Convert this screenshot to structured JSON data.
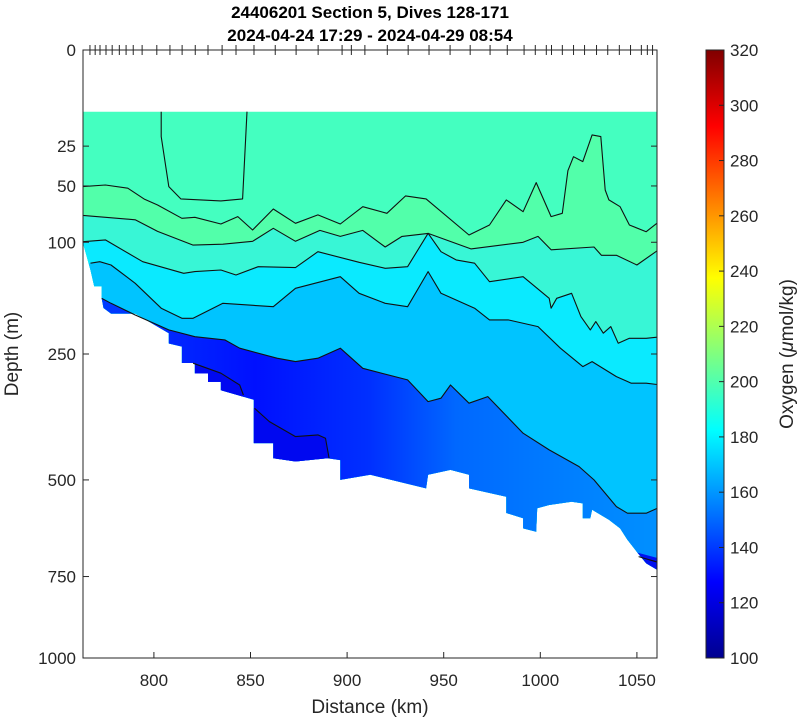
{
  "chart_data": {
    "type": "heatmap",
    "subtype": "filled-contour section",
    "title": [
      "24406201 Section 5, Dives 128-171",
      "2024-04-24 17:29 - 2024-04-29 08:54"
    ],
    "xlabel": "Distance (km)",
    "ylabel": "Depth (m)",
    "xlim": [
      763.3,
      1060.4
    ],
    "ylim": [
      0,
      1000
    ],
    "yscale": "sqrt",
    "yreversed": true,
    "xticks": [
      800,
      850,
      900,
      950,
      1000,
      1050
    ],
    "yticks": [
      0,
      25,
      50,
      100,
      250,
      500,
      750,
      1000
    ],
    "colorbar": {
      "label": "Oxygen (μmol/kg)",
      "colormap": "jet",
      "range": [
        100,
        320
      ],
      "ticks": [
        100,
        120,
        140,
        160,
        180,
        200,
        220,
        240,
        260,
        280,
        300,
        320
      ]
    },
    "data_top_depth": 10.3,
    "dive_markers_km": [
      766.9,
      769.6,
      772.1,
      775.2,
      778.4,
      782.1,
      785.6,
      789.3,
      793.9,
      801.5,
      808.3,
      814.6,
      821.4,
      828,
      835.3,
      842.5,
      851.8,
      862.8,
      873.6,
      885,
      897.4,
      902.2,
      909.2,
      920.8,
      931.6,
      942.4,
      953.3,
      963.7,
      974,
      982.9,
      991.6,
      997.4,
      1003.1,
      1005.8,
      1011.4,
      1017.2,
      1022.9,
      1029.1,
      1034.9,
      1040.9,
      1046.7,
      1052.3,
      1055.4,
      1058.1
    ],
    "bottom_profile": [
      [
        763.3,
        101
      ],
      [
        767.2,
        131
      ],
      [
        769.1,
        151
      ],
      [
        773,
        151
      ],
      [
        773,
        167
      ],
      [
        773.9,
        180
      ],
      [
        777.8,
        188
      ],
      [
        790.3,
        188
      ],
      [
        807.7,
        217
      ],
      [
        807.7,
        233
      ],
      [
        814.5,
        238
      ],
      [
        814.5,
        265
      ],
      [
        821.2,
        265
      ],
      [
        821.2,
        283
      ],
      [
        828,
        283
      ],
      [
        828,
        298
      ],
      [
        834.7,
        298
      ],
      [
        834.7,
        313
      ],
      [
        851.7,
        331
      ],
      [
        851.7,
        418
      ],
      [
        861.8,
        418
      ],
      [
        861.8,
        451
      ],
      [
        873.3,
        458
      ],
      [
        889.8,
        451
      ],
      [
        896.5,
        455
      ],
      [
        896.5,
        500
      ],
      [
        912,
        488
      ],
      [
        940.9,
        520
      ],
      [
        941.9,
        488
      ],
      [
        953.5,
        477
      ],
      [
        963.1,
        488
      ],
      [
        963.1,
        520
      ],
      [
        982.4,
        540
      ],
      [
        982.4,
        580
      ],
      [
        991.1,
        593
      ],
      [
        991.1,
        619
      ],
      [
        997.9,
        628
      ],
      [
        998.4,
        568
      ],
      [
        1004.6,
        560
      ],
      [
        1016.2,
        552
      ],
      [
        1022,
        556
      ],
      [
        1022,
        593
      ],
      [
        1025.9,
        593
      ],
      [
        1026.8,
        572
      ],
      [
        1035.5,
        597
      ],
      [
        1041.3,
        619
      ],
      [
        1045.1,
        649
      ],
      [
        1049.9,
        681
      ],
      [
        1054.8,
        713
      ],
      [
        1060.4,
        731
      ]
    ],
    "bands": [
      {
        "name": "above-contour-a",
        "value": 195,
        "color": "#44ffc0"
      },
      {
        "name": "a-to-b",
        "value": 200,
        "color": "#52ffaa"
      },
      {
        "name": "b-to-c",
        "value": 190,
        "color": "#38f6d6"
      },
      {
        "name": "c-to-d",
        "value": 180,
        "color": "#0aeaff"
      },
      {
        "name": "d-to-e",
        "value": 168,
        "color": "#00c4ff"
      },
      {
        "name": "below-e",
        "value": 140,
        "color": "gradient"
      }
    ],
    "contours": [
      {
        "name": "contour-a",
        "points": [
          [
            763.3,
            50.5
          ],
          [
            774.9,
            49.3
          ],
          [
            786.5,
            51.7
          ],
          [
            795.2,
            60.3
          ],
          [
            801.9,
            65
          ],
          [
            814.5,
            76.6
          ],
          [
            821.2,
            75.7
          ],
          [
            834.7,
            81.9
          ],
          [
            843.4,
            75.1
          ],
          [
            851.1,
            87.6
          ],
          [
            861.8,
            68.4
          ],
          [
            873.3,
            81.2
          ],
          [
            884.9,
            73.6
          ],
          [
            896.5,
            81.9
          ],
          [
            908.1,
            66.4
          ],
          [
            920.6,
            72.1
          ],
          [
            930.3,
            57.6
          ],
          [
            940.9,
            60
          ],
          [
            963.1,
            92.6
          ],
          [
            973.7,
            82.8
          ],
          [
            982.4,
            60.8
          ],
          [
            991.1,
            70.7
          ],
          [
            997.9,
            47.6
          ],
          [
            1005.6,
            75.1
          ],
          [
            1011.4,
            72.1
          ],
          [
            1014.3,
            39.4
          ],
          [
            1017.2,
            30.8
          ],
          [
            1022,
            33.7
          ],
          [
            1026.8,
            19.5
          ],
          [
            1031.3,
            20.3
          ],
          [
            1033.6,
            53
          ],
          [
            1035.5,
            60.8
          ],
          [
            1041.3,
            66.4
          ],
          [
            1046.1,
            82.8
          ],
          [
            1054.8,
            89.3
          ],
          [
            1062.5,
            78.1
          ]
        ]
      },
      {
        "name": "contour-b",
        "points": [
          [
            763.3,
            74
          ],
          [
            790.3,
            78
          ],
          [
            801.9,
            89
          ],
          [
            820.3,
            103
          ],
          [
            835.7,
            102
          ],
          [
            851.1,
            99
          ],
          [
            861.8,
            86
          ],
          [
            873.3,
            99
          ],
          [
            885.9,
            88
          ],
          [
            896.5,
            94
          ],
          [
            908.1,
            88
          ],
          [
            919.7,
            105
          ],
          [
            928.4,
            94
          ],
          [
            941.9,
            91
          ],
          [
            964.1,
            107
          ],
          [
            991.1,
            100
          ],
          [
            998.8,
            94
          ],
          [
            1005.6,
            108
          ],
          [
            1027.8,
            105
          ],
          [
            1031.6,
            114
          ],
          [
            1039.4,
            114
          ],
          [
            1050,
            125
          ],
          [
            1062.5,
            106
          ]
        ]
      },
      {
        "name": "contour-c",
        "points": [
          [
            763.3,
            99.4
          ],
          [
            774.9,
            97.6
          ],
          [
            794.2,
            121.2
          ],
          [
            815.4,
            134.9
          ],
          [
            821.2,
            132.9
          ],
          [
            834.7,
            130.9
          ],
          [
            842.5,
            136.9
          ],
          [
            854,
            127
          ],
          [
            873.3,
            128.1
          ],
          [
            884.9,
            110
          ],
          [
            906.2,
            121.9
          ],
          [
            919.7,
            128.9
          ],
          [
            931.3,
            127
          ],
          [
            941.9,
            90.9
          ],
          [
            948.6,
            110
          ],
          [
            956.4,
            119.2
          ],
          [
            966,
            123
          ],
          [
            973.7,
            145.2
          ],
          [
            991.1,
            139
          ],
          [
            1004.6,
            166.8
          ],
          [
            1005.6,
            180.4
          ],
          [
            1008.5,
            166.8
          ],
          [
            1016.2,
            160.1
          ],
          [
            1021,
            192.3
          ],
          [
            1025.9,
            212
          ],
          [
            1028.7,
            199.6
          ],
          [
            1032.6,
            217
          ],
          [
            1036.5,
            207
          ],
          [
            1040.3,
            232.6
          ],
          [
            1046.1,
            224.8
          ],
          [
            1054.8,
            224.8
          ],
          [
            1062.5,
            222.3
          ]
        ]
      },
      {
        "name": "contour-d",
        "points": [
          [
            767.2,
            123
          ],
          [
            772,
            121.2
          ],
          [
            777.8,
            125
          ],
          [
            790.3,
            147.2
          ],
          [
            803.8,
            180.4
          ],
          [
            814.5,
            194.7
          ],
          [
            820.3,
            194.7
          ],
          [
            835.7,
            173.5
          ],
          [
            861.8,
            178.2
          ],
          [
            873.3,
            153.6
          ],
          [
            896.5,
            139
          ],
          [
            906.2,
            160.1
          ],
          [
            919.7,
            173.5
          ],
          [
            931.3,
            178.2
          ],
          [
            941.9,
            132.9
          ],
          [
            948.6,
            160.1
          ],
          [
            966,
            180.4
          ],
          [
            973.7,
            197.1
          ],
          [
            983.4,
            197.1
          ],
          [
            998.8,
            207
          ],
          [
            1010.4,
            240.6
          ],
          [
            1022,
            271.2
          ],
          [
            1026.8,
            262.7
          ],
          [
            1039.4,
            288.6
          ],
          [
            1047.1,
            300.4
          ],
          [
            1054.8,
            300.4
          ],
          [
            1062.5,
            303.5
          ]
        ]
      },
      {
        "name": "contour-e",
        "points": [
          [
            773,
            166.8
          ],
          [
            777.8,
            173.5
          ],
          [
            790.3,
            189.9
          ],
          [
            807.7,
            212
          ],
          [
            821.2,
            222.3
          ],
          [
            836.7,
            227.4
          ],
          [
            844.4,
            240.6
          ],
          [
            863.7,
            257
          ],
          [
            873.3,
            262.7
          ],
          [
            884.9,
            257
          ],
          [
            896.5,
            240.6
          ],
          [
            908.1,
            274
          ],
          [
            931.3,
            294.5
          ],
          [
            941.9,
            334.5
          ],
          [
            948.6,
            328
          ],
          [
            953.5,
            303.5
          ],
          [
            963.1,
            337.5
          ],
          [
            972.8,
            325
          ],
          [
            991.1,
            397.3
          ],
          [
            1004.6,
            432.7
          ],
          [
            1020.1,
            469.5
          ],
          [
            1027.8,
            500
          ],
          [
            1039.4,
            564
          ],
          [
            1045.1,
            580.4
          ],
          [
            1054.8,
            580.4
          ],
          [
            1062.5,
            564
          ]
        ]
      },
      {
        "name": "contour-f1",
        "points": [
          [
            820.3,
            265.4
          ],
          [
            834.7,
            282.6
          ],
          [
            844.4,
            303.5
          ],
          [
            846.3,
            321.9
          ]
        ]
      },
      {
        "name": "contour-f2",
        "points": [
          [
            852.1,
            347.2
          ],
          [
            859.8,
            373.6
          ],
          [
            873.3,
            404.4
          ],
          [
            884.9,
            400.8
          ],
          [
            888.8,
            407.6
          ],
          [
            890.7,
            450.8
          ]
        ]
      },
      {
        "name": "contour-f3",
        "points": [
          [
            1050.9,
            694.3
          ],
          [
            1062.5,
            712.5
          ]
        ]
      },
      {
        "name": "contour-g-closed",
        "points": [
          [
            803.8,
            10.3
          ],
          [
            803.8,
            20.3
          ],
          [
            807.7,
            50.5
          ],
          [
            813.9,
            60
          ],
          [
            834.7,
            61.6
          ],
          [
            845.9,
            60
          ],
          [
            848.2,
            10.3
          ]
        ]
      }
    ]
  }
}
